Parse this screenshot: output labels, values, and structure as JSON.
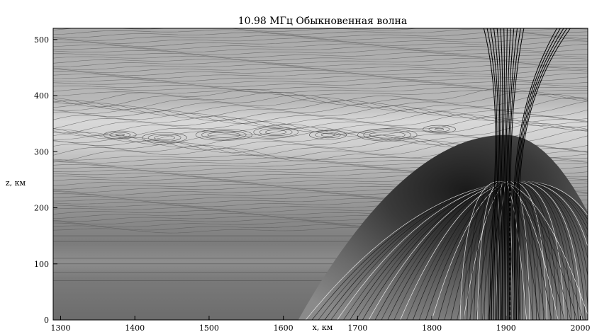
{
  "chart_data": {
    "type": "heatmap",
    "title": "10.98 МГц Обыкновенная волна",
    "xlabel": "x, км",
    "ylabel": "z, км",
    "xlim": [
      1290,
      2010
    ],
    "ylim": [
      0,
      520
    ],
    "x_ticks": [
      1300,
      1400,
      1500,
      1600,
      1700,
      1800,
      1900,
      2000
    ],
    "y_ticks": [
      0,
      100,
      200,
      300,
      400,
      500
    ],
    "grid": false,
    "colormap": "grayscale",
    "colors": {
      "background_top": "#a9a9a9",
      "bright_band": "#d9d9d9",
      "lower_layer": "#7a7a7a",
      "bottom": "#6e6e6e",
      "rays": "#000000"
    },
    "ray_focus_point": {
      "x": 1900,
      "z": 245
    },
    "caustic_cone": {
      "apex_x": 1900,
      "apex_z": 330,
      "base_left_x": 1620,
      "base_right_x": 2010
    }
  }
}
